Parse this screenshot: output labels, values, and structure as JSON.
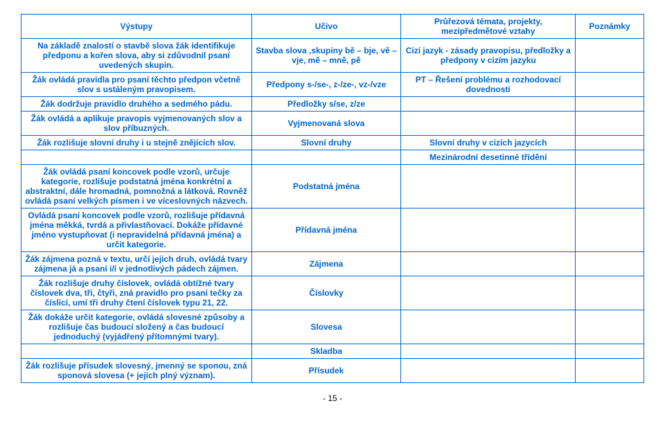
{
  "headers": {
    "c1": "Výstupy",
    "c2": "Učivo",
    "c3": "Průřezová témata, projekty, mezipředmětové vztahy",
    "c4": "Poznámky"
  },
  "rows": [
    {
      "c1": "Na základě znalostí o stavbě slova žák identifikuje předponu a kořen slova, aby si zdůvodnil psaní uvedených skupin.",
      "c2": "Stavba slova ,skupiny bě – bje, vě – vje, mě – mně, pě",
      "c3": "Cizí jazyk  - zásady pravopisu, předložky a předpony v cizím jazyku",
      "c4": ""
    },
    {
      "c1": "Žák ovládá pravidla pro psaní těchto předpon včetně slov s ustáleným pravopisem.",
      "c2": "Předpony s-/se-, z-/ze-, vz-/vze",
      "c3": "PT – Řešení problému a rozhodovací dovednosti",
      "c4": ""
    },
    {
      "c1": "Žák dodržuje pravidlo druhého a sedmého pádu.",
      "c2": "Předložky s/se, z/ze",
      "c3": "",
      "c4": ""
    },
    {
      "c1": "Žák ovládá a aplikuje pravopis vyjmenovaných slov a slov příbuzných.",
      "c2": "Vyjmenovaná slova",
      "c3": "",
      "c4": ""
    },
    {
      "c1": "Žák rozlišuje slovní druhy i u stejně znějících slov.",
      "c2": "Slovní druhy",
      "c3": "Slovní druhy v cizích jazycích",
      "c4": ""
    },
    {
      "c1": "",
      "c2": "",
      "c3": "Mezinárodní desetinné třídění",
      "c4": ""
    },
    {
      "c1": "Žák ovládá psaní koncovek podle vzorů, určuje kategorie, rozlišuje podstatná jména konkrétní a abstraktní, dále hromadná, pomnožná a látková. Rovněž ovládá psaní velkých písmen i ve víceslovných názvech.",
      "c2": "Podstatná jména",
      "c3": "",
      "c4": ""
    },
    {
      "c1": "Ovládá psaní koncovek podle vzorů, rozlišuje přídavná jména měkká, tvrdá a přivlastňovací. Dokáže přídavné jméno vystupňovat (i nepravidelná přídavná jména) a určit kategorie.",
      "c2": "Přídavná jména",
      "c3": "",
      "c4": ""
    },
    {
      "c1": "Žák zájmena pozná v textu, určí jejich druh, ovládá tvary zájmena já a psaní i/í v jednotlivých pádech zájmen.",
      "c2": "Zájmena",
      "c3": "",
      "c4": ""
    },
    {
      "c1": "Žák rozlišuje druhy číslovek, ovládá obtížné tvary číslovek dva, tři, čtyři, zná pravidlo pro psaní tečky za číslicí, umí tři druhy čtení číslovek typu 21, 22.",
      "c2": "Číslovky",
      "c3": "",
      "c4": ""
    },
    {
      "c1": "Žák dokáže určit kategorie, ovládá slovesné způsoby a rozlišuje čas budoucí složený a čas budoucí jednoduchý (vyjádřený přítomnými tvary).",
      "c2": "Slovesa",
      "c3": "",
      "c4": ""
    },
    {
      "c1": "",
      "c2": "Skladba",
      "c3": "",
      "c4": ""
    },
    {
      "c1": "Žák rozlišuje přísudek slovesný, jmenný se sponou, zná  sponová slovesa (+ jejich plný význam).",
      "c2": "Přísudek",
      "c3": "",
      "c4": ""
    }
  ],
  "pagenum": "- 15 -",
  "colors": {
    "border": "#0066cc",
    "text": "#0066cc",
    "pagenum": "#000000",
    "background": "#ffffff"
  }
}
